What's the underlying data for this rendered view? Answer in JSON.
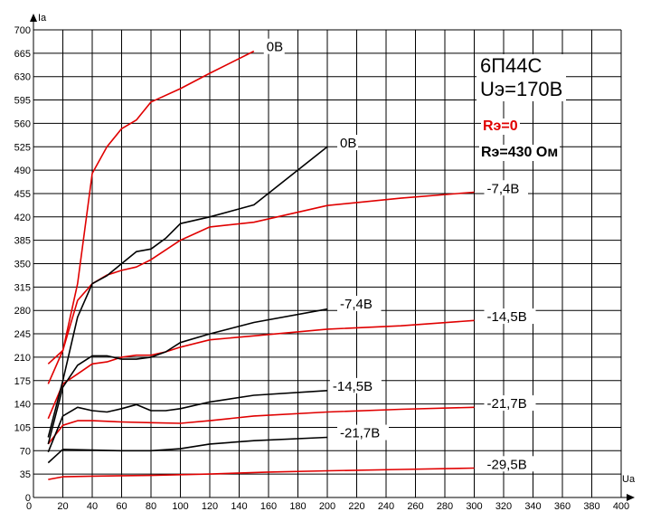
{
  "info": {
    "tube": "6П44С",
    "screen_voltage": "Uэ=170В",
    "legend_red": "Rэ=0",
    "legend_black": "Rэ=430 Ом",
    "red_color": "#e00000",
    "black_color": "#000000"
  },
  "chart_data": {
    "type": "line",
    "title": "",
    "xlabel": "Ua",
    "ylabel": "Ia",
    "xlim": [
      0,
      400
    ],
    "ylim": [
      0,
      700
    ],
    "xticks": [
      0,
      20,
      40,
      60,
      80,
      100,
      120,
      140,
      160,
      180,
      200,
      220,
      240,
      260,
      280,
      300,
      320,
      340,
      360,
      380,
      400
    ],
    "yticks": [
      0,
      35,
      70,
      105,
      140,
      175,
      210,
      245,
      280,
      315,
      350,
      385,
      420,
      455,
      490,
      525,
      560,
      595,
      630,
      665,
      700
    ],
    "grid": true,
    "series": [
      {
        "name": "0В",
        "group": "red",
        "x": [
          10,
          20,
          30,
          40,
          50,
          60,
          70,
          80,
          100,
          120,
          150
        ],
        "y": [
          170,
          220,
          320,
          485,
          525,
          552,
          565,
          592,
          612,
          635,
          668
        ]
      },
      {
        "name": "-7,4В",
        "group": "red",
        "x": [
          10,
          20,
          30,
          40,
          50,
          60,
          70,
          80,
          100,
          120,
          150,
          200,
          250,
          300
        ],
        "y": [
          200,
          220,
          295,
          320,
          333,
          340,
          345,
          356,
          385,
          405,
          412,
          437,
          448,
          457
        ]
      },
      {
        "name": "-14,5В",
        "group": "red",
        "x": [
          10,
          20,
          30,
          40,
          50,
          60,
          70,
          80,
          90,
          100,
          120,
          150,
          200,
          250,
          300
        ],
        "y": [
          118,
          170,
          185,
          200,
          203,
          210,
          213,
          213,
          218,
          225,
          236,
          242,
          252,
          257,
          265
        ]
      },
      {
        "name": "-21,7В",
        "group": "red",
        "x": [
          10,
          20,
          30,
          40,
          60,
          80,
          100,
          120,
          150,
          200,
          250,
          300
        ],
        "y": [
          80,
          108,
          115,
          115,
          113,
          112,
          111,
          115,
          122,
          128,
          132,
          135
        ]
      },
      {
        "name": "-29,5В",
        "group": "red",
        "x": [
          10,
          20,
          40,
          80,
          120,
          160,
          200,
          250,
          300
        ],
        "y": [
          27,
          31,
          32,
          33,
          35,
          38,
          40,
          42,
          44
        ]
      },
      {
        "name": "0В",
        "group": "black",
        "x": [
          10,
          20,
          30,
          40,
          50,
          60,
          70,
          80,
          90,
          100,
          120,
          150,
          200
        ],
        "y": [
          90,
          175,
          270,
          320,
          332,
          350,
          368,
          372,
          388,
          410,
          420,
          438,
          525
        ]
      },
      {
        "name": "-7,4В",
        "group": "black",
        "x": [
          10,
          20,
          30,
          40,
          50,
          60,
          70,
          80,
          90,
          100,
          120,
          150,
          200
        ],
        "y": [
          80,
          165,
          198,
          212,
          212,
          207,
          207,
          210,
          218,
          232,
          245,
          262,
          282
        ]
      },
      {
        "name": "-14,5В",
        "group": "black",
        "x": [
          10,
          20,
          30,
          40,
          50,
          60,
          70,
          80,
          90,
          100,
          120,
          150,
          200
        ],
        "y": [
          68,
          122,
          135,
          130,
          128,
          133,
          139,
          130,
          130,
          133,
          143,
          153,
          160
        ]
      },
      {
        "name": "-21,7В",
        "group": "black",
        "x": [
          10,
          20,
          40,
          60,
          80,
          100,
          120,
          150,
          200
        ],
        "y": [
          52,
          72,
          71,
          70,
          70,
          73,
          80,
          85,
          90
        ]
      }
    ],
    "curve_labels": [
      {
        "text": "0В",
        "x": 158,
        "y": 672
      },
      {
        "text": "0В",
        "x": 208,
        "y": 528
      },
      {
        "text": "-7,4В",
        "x": 308,
        "y": 460
      },
      {
        "text": "-7,4В",
        "x": 208,
        "y": 287
      },
      {
        "text": "-14,5В",
        "x": 308,
        "y": 268
      },
      {
        "text": "-14,5В",
        "x": 203,
        "y": 164
      },
      {
        "text": "-21,7В",
        "x": 308,
        "y": 138
      },
      {
        "text": "-21,7В",
        "x": 208,
        "y": 94
      },
      {
        "text": "-29,5В",
        "x": 308,
        "y": 47
      }
    ]
  }
}
